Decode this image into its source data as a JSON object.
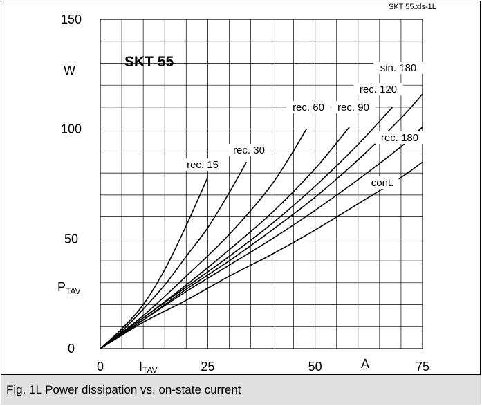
{
  "file_tag": "SKT 55.xls-1L",
  "caption": "Fig. 1L Power dissipation vs. on-state current",
  "chart_data": {
    "type": "line",
    "title": "SKT 55",
    "xlabel": {
      "main": "I",
      "sub": "TAV"
    },
    "x_unit": "A",
    "ylabel": {
      "main": "P",
      "sub": "TAV"
    },
    "y_unit": "W",
    "xlim": [
      0,
      75
    ],
    "ylim": [
      0,
      150
    ],
    "x_ticks": [
      "0",
      "25",
      "50",
      "75"
    ],
    "y_ticks": [
      "0",
      "50",
      "100",
      "150"
    ],
    "grid": true,
    "series": [
      {
        "name": "rec. 15",
        "x": [
          0,
          5,
          10,
          15,
          20,
          25
        ],
        "y": [
          0,
          9,
          20,
          36,
          56,
          78
        ]
      },
      {
        "name": "rec. 30",
        "x": [
          0,
          5,
          10,
          15,
          20,
          25,
          30,
          34
        ],
        "y": [
          0,
          8,
          18,
          29,
          42,
          55,
          71,
          85
        ]
      },
      {
        "name": "rec. 60",
        "x": [
          0,
          10,
          20,
          30,
          40,
          48
        ],
        "y": [
          0,
          15,
          33,
          52,
          75,
          100
        ]
      },
      {
        "name": "rec. 90",
        "x": [
          0,
          10,
          20,
          30,
          40,
          50,
          58
        ],
        "y": [
          0,
          14,
          29,
          45,
          62,
          82,
          101
        ]
      },
      {
        "name": "rec. 120",
        "x": [
          0,
          10,
          20,
          30,
          40,
          50,
          60,
          68
        ],
        "y": [
          0,
          14,
          28,
          42,
          57,
          74,
          93,
          110
        ]
      },
      {
        "name": "sin. 180",
        "x": [
          0,
          10,
          20,
          30,
          40,
          50,
          60,
          70,
          75
        ],
        "y": [
          0,
          13,
          27,
          40,
          54,
          69,
          86,
          105,
          116
        ]
      },
      {
        "name": "rec. 180",
        "x": [
          0,
          10,
          20,
          30,
          40,
          50,
          60,
          70,
          75
        ],
        "y": [
          0,
          13,
          26,
          38,
          50,
          63,
          77,
          92,
          101
        ]
      },
      {
        "name": "cont.",
        "x": [
          0,
          10,
          20,
          30,
          40,
          50,
          60,
          70,
          75
        ],
        "y": [
          0,
          12,
          22,
          33,
          43,
          54,
          66,
          78,
          85
        ]
      }
    ]
  }
}
